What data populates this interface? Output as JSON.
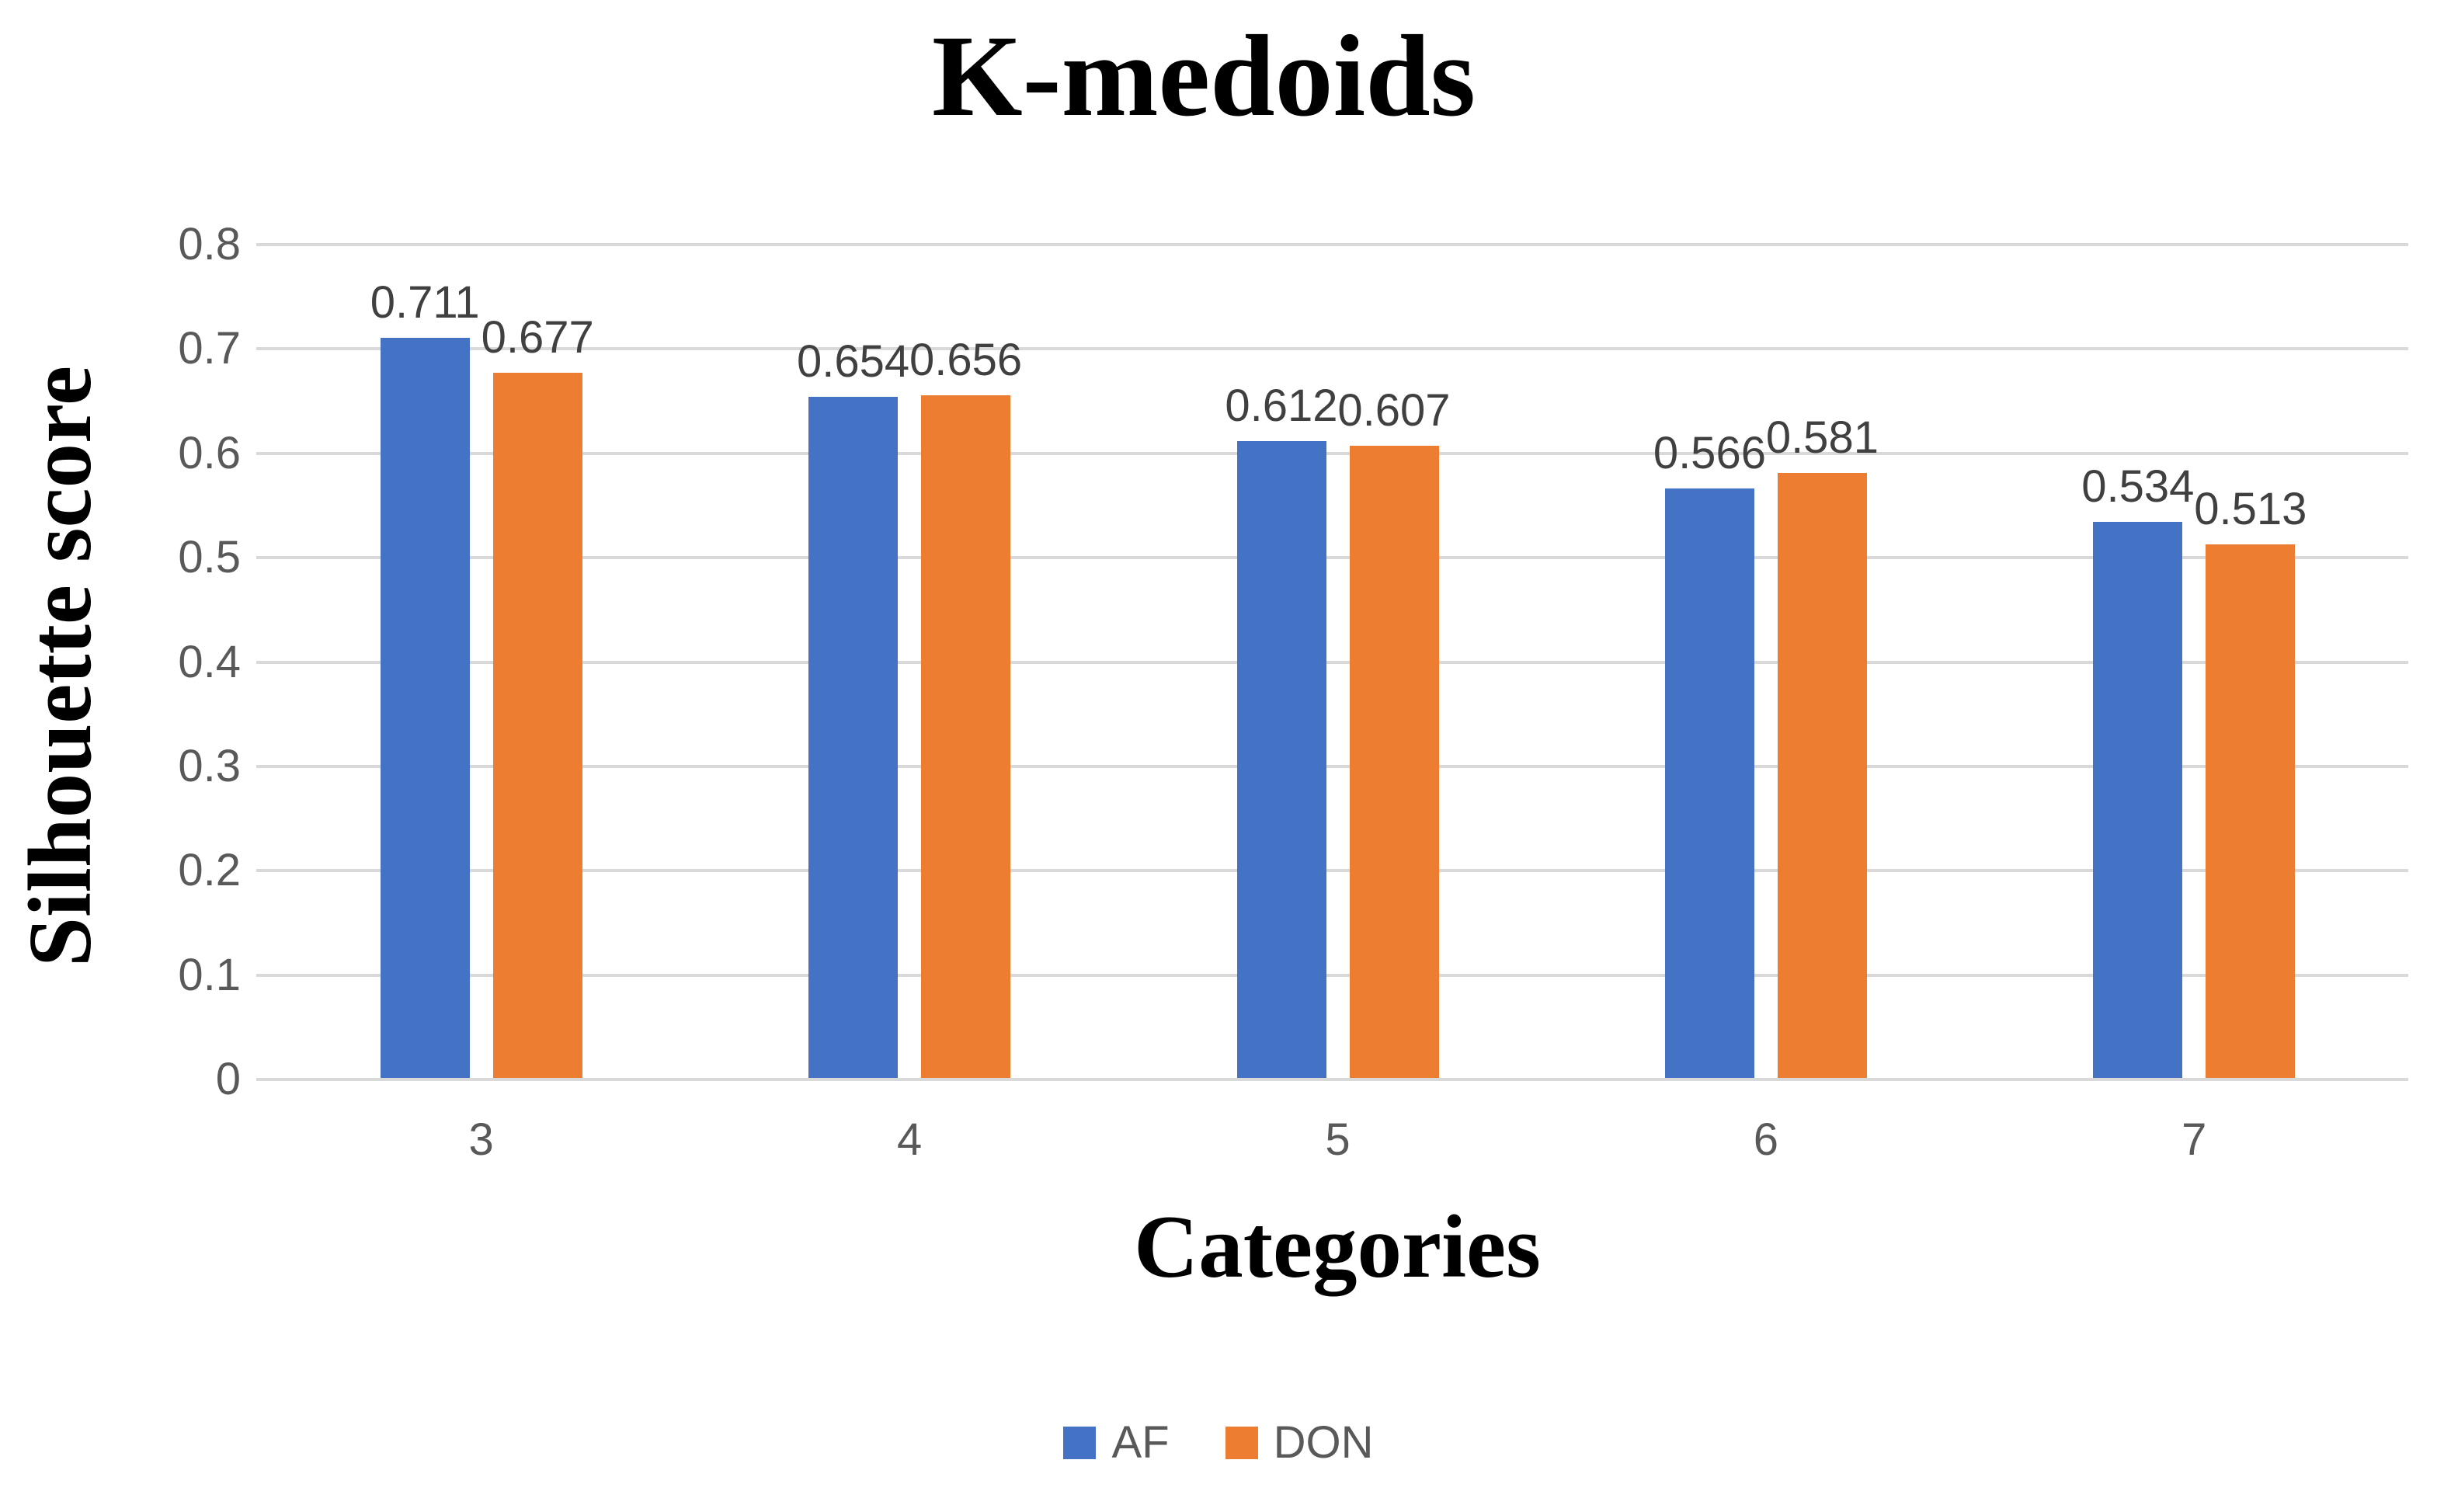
{
  "chart_data": {
    "type": "bar",
    "title": "K-medoids",
    "xlabel": "Categories",
    "ylabel": "Silhouette score",
    "categories": [
      "3",
      "4",
      "5",
      "6",
      "7"
    ],
    "series": [
      {
        "name": "AF",
        "color": "#4472C4",
        "values": [
          0.711,
          0.654,
          0.612,
          0.566,
          0.534
        ]
      },
      {
        "name": "DON",
        "color": "#ED7D31",
        "values": [
          0.677,
          0.656,
          0.607,
          0.581,
          0.513
        ]
      }
    ],
    "data_labels": [
      [
        "0.711",
        "0.654",
        "0.612",
        "0.566",
        "0.534"
      ],
      [
        "0.677",
        "0.656",
        "0.607",
        "0.581",
        "0.513"
      ]
    ],
    "ylim": [
      0,
      0.8
    ],
    "ytick_step": 0.1,
    "yticks": [
      "0",
      "0.1",
      "0.2",
      "0.3",
      "0.4",
      "0.5",
      "0.6",
      "0.7",
      "0.8"
    ],
    "grid": true,
    "legend_position": "bottom",
    "legend": [
      {
        "label": "AF",
        "color": "#4472C4"
      },
      {
        "label": "DON",
        "color": "#ED7D31"
      }
    ]
  },
  "colors": {
    "gridline": "#D9D9D9",
    "tick_text": "#595959",
    "data_label_text": "#404040",
    "title_text": "#000000",
    "background": "#FFFFFF"
  }
}
